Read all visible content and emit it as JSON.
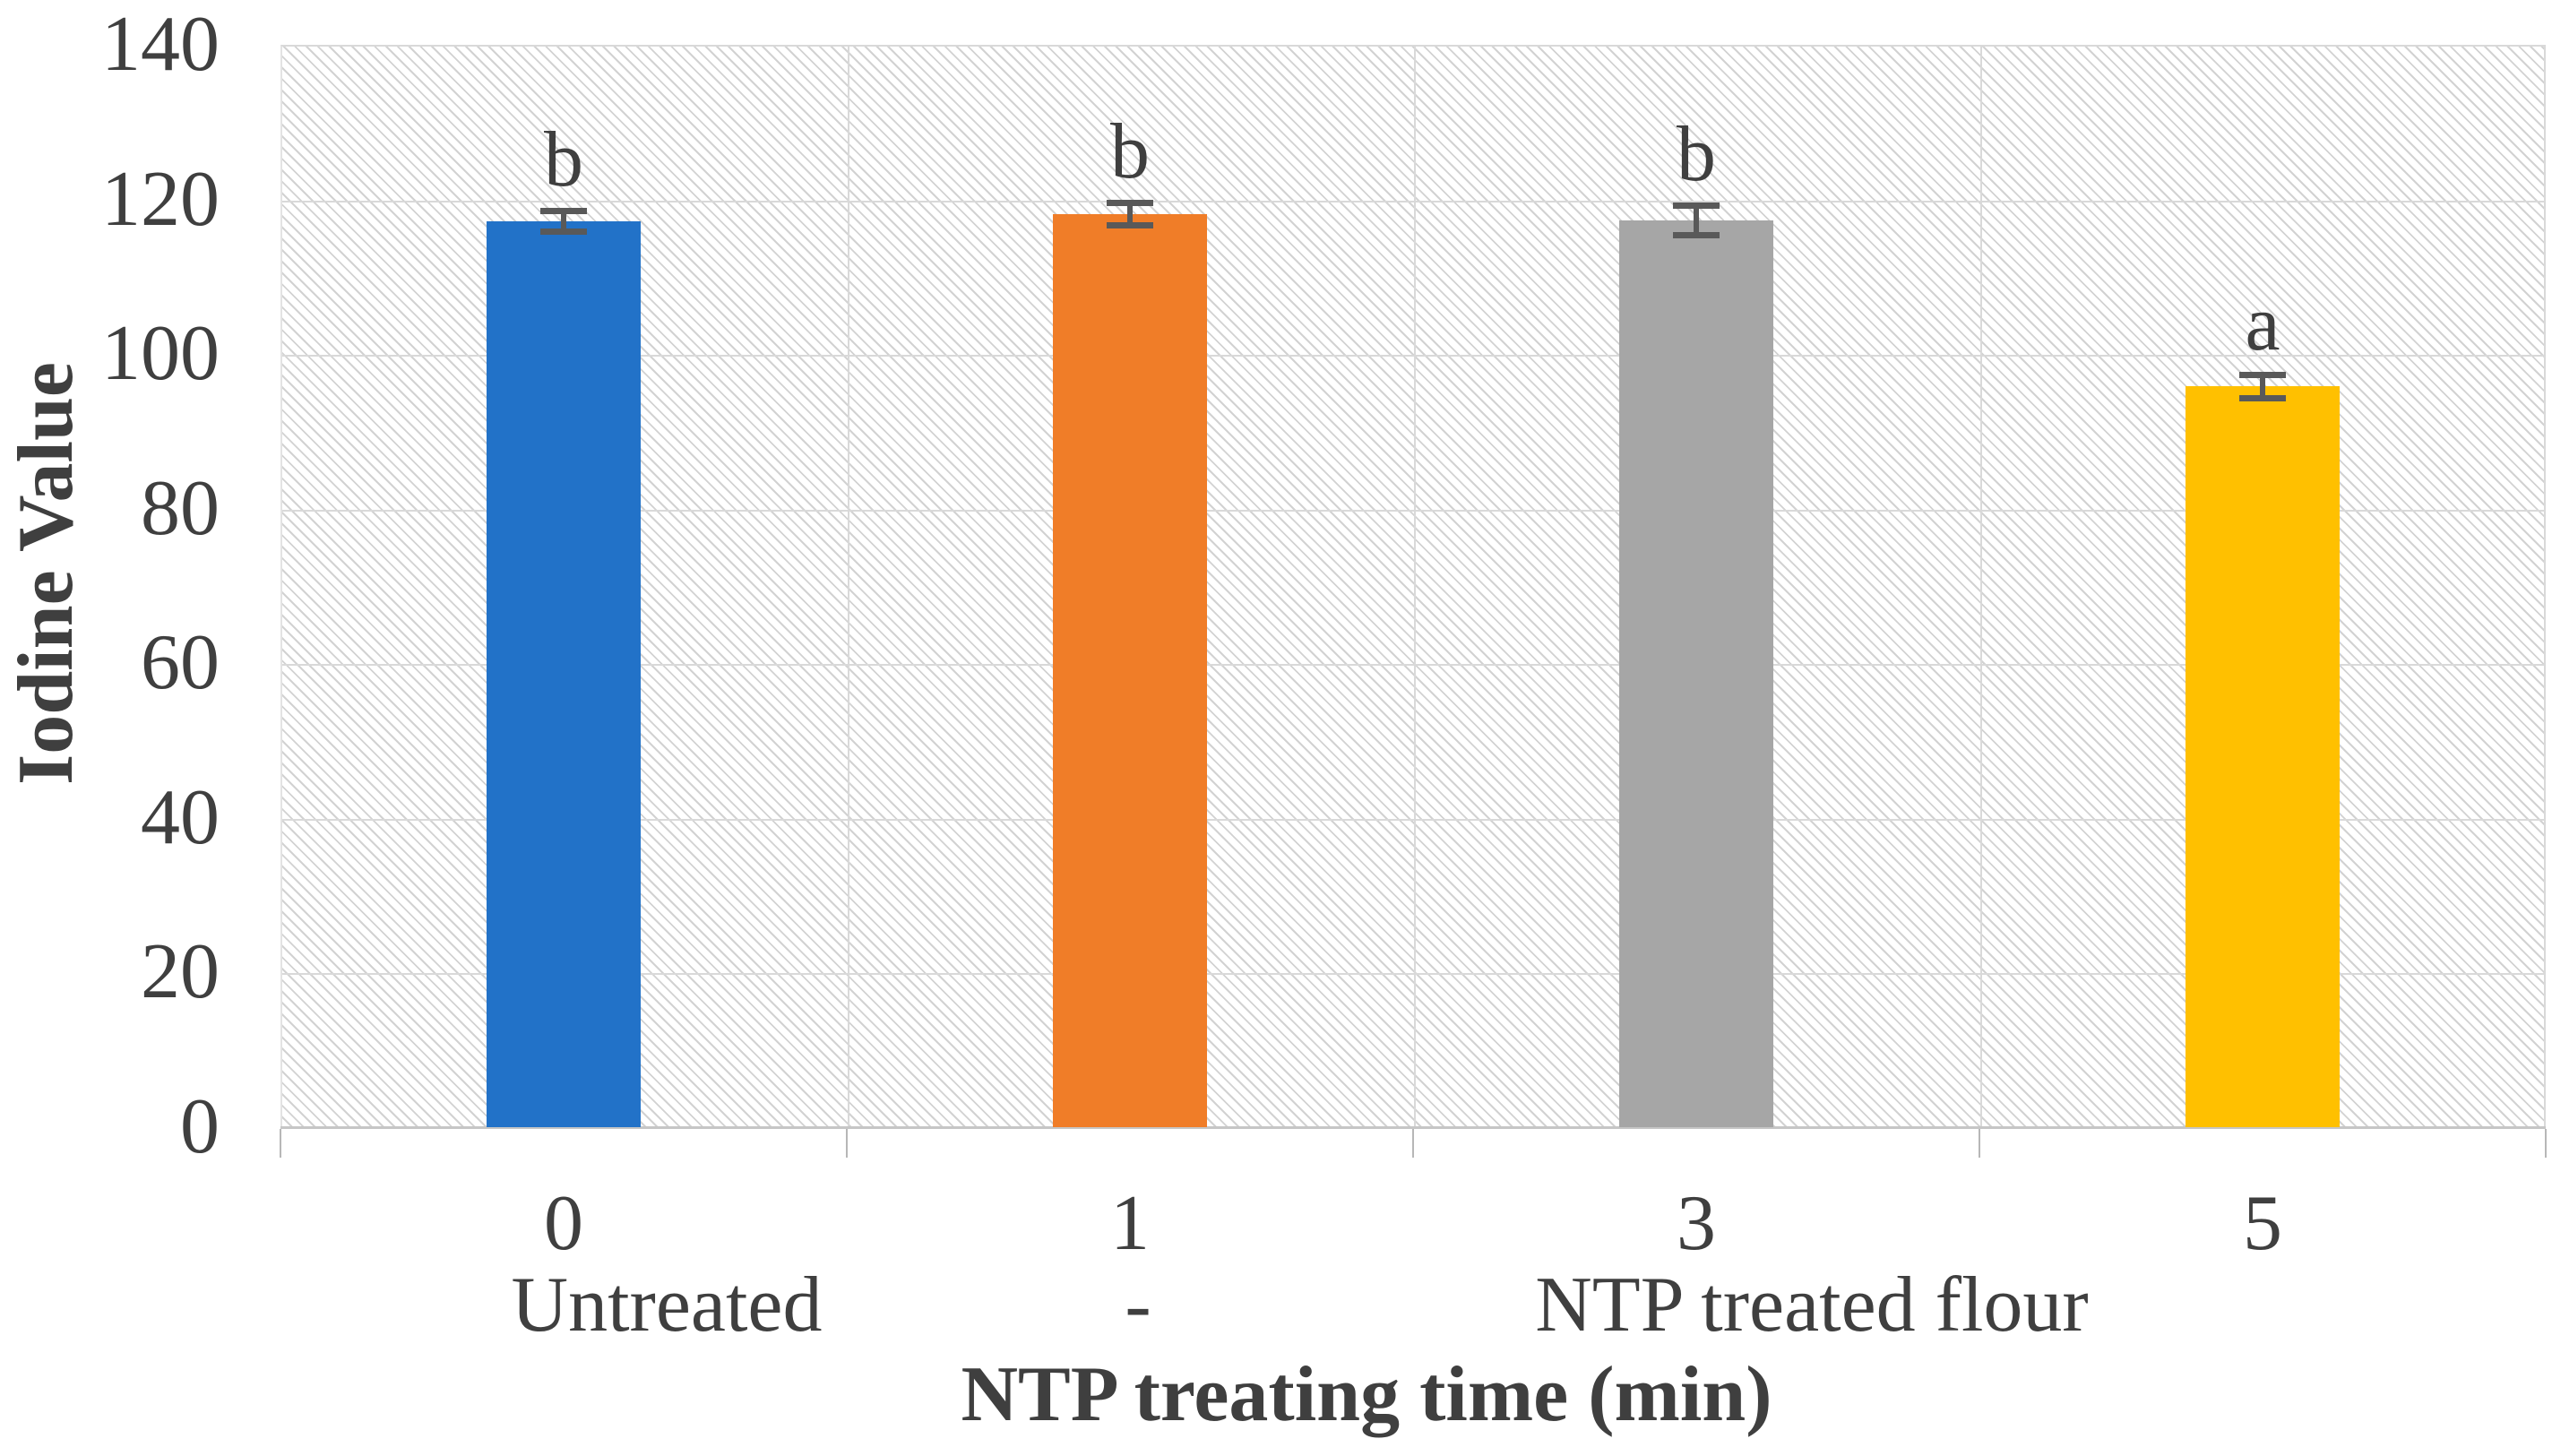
{
  "chart_data": {
    "type": "bar",
    "title": "",
    "xlabel": "NTP treating time (min)",
    "ylabel": "Iodine Value",
    "ylim": [
      0,
      140
    ],
    "ytick_step": 20,
    "grid": true,
    "legend_position": "none",
    "categories": [
      "0",
      "1",
      "3",
      "5"
    ],
    "group_labels": [
      "Untreated",
      "-",
      "NTP treated flour"
    ],
    "series": [
      {
        "name": "Iodine Value",
        "values": [
          117.2,
          118.1,
          117.3,
          95.8
        ],
        "errors": [
          1.4,
          1.5,
          2.0,
          1.6
        ],
        "sig_letters": [
          "b",
          "b",
          "b",
          "a"
        ],
        "bar_colors": [
          "#2272C8",
          "#F07D28",
          "#A6A6A6",
          "#FFC000"
        ]
      }
    ]
  },
  "colors": {
    "gridline": "#d9d9d9",
    "axis_line": "#c6c6c6",
    "error_bar": "#595959",
    "text": "#3f3f3f",
    "hatch": "#d2d2d2"
  }
}
